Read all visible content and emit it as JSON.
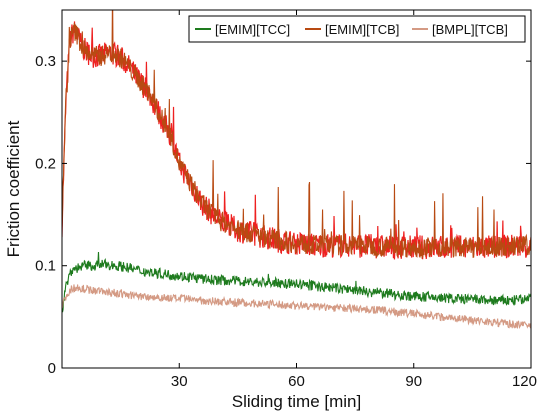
{
  "chart_data": {
    "type": "line",
    "title": "",
    "xlabel": "Sliding time [min]",
    "ylabel": "Friction coefficient",
    "xlim": [
      0,
      120
    ],
    "ylim": [
      0,
      0.35
    ],
    "x_ticks": [
      30,
      60,
      90,
      120
    ],
    "x_tick_labels": [
      "30",
      "60",
      "90",
      "120"
    ],
    "y_ticks": [
      0,
      0.1,
      0.2,
      0.3
    ],
    "y_tick_labels": [
      "0",
      "0.1",
      "0.2",
      "0.3"
    ],
    "grid": false,
    "legend_position": "top-right",
    "x": [
      0,
      1,
      2,
      3,
      4,
      5,
      6,
      8,
      10,
      12,
      14,
      16,
      18,
      20,
      22,
      24,
      26,
      28,
      30,
      33,
      36,
      40,
      45,
      50,
      55,
      60,
      65,
      70,
      75,
      80,
      85,
      90,
      95,
      100,
      105,
      110,
      115,
      120
    ],
    "series": [
      {
        "name": "[EMIM][TCC]",
        "color": "#1e7b1e",
        "values": [
          0.055,
          0.08,
          0.092,
          0.097,
          0.098,
          0.099,
          0.1,
          0.1,
          0.101,
          0.101,
          0.1,
          0.099,
          0.097,
          0.095,
          0.094,
          0.093,
          0.092,
          0.091,
          0.09,
          0.089,
          0.087,
          0.086,
          0.085,
          0.084,
          0.083,
          0.082,
          0.08,
          0.078,
          0.076,
          0.074,
          0.072,
          0.07,
          0.069,
          0.068,
          0.067,
          0.066,
          0.066,
          0.068
        ]
      },
      {
        "name": "[EMIM][TCB]",
        "color": "#b84a12",
        "values": [
          0.14,
          0.26,
          0.32,
          0.33,
          0.325,
          0.315,
          0.31,
          0.305,
          0.305,
          0.308,
          0.306,
          0.3,
          0.29,
          0.28,
          0.27,
          0.255,
          0.24,
          0.225,
          0.2,
          0.18,
          0.16,
          0.145,
          0.135,
          0.13,
          0.125,
          0.122,
          0.12,
          0.12,
          0.12,
          0.119,
          0.118,
          0.118,
          0.118,
          0.118,
          0.118,
          0.118,
          0.119,
          0.12
        ]
      },
      {
        "name": "[BMPL][TCB]",
        "color": "#d49a84",
        "values": [
          0.06,
          0.07,
          0.076,
          0.078,
          0.079,
          0.078,
          0.077,
          0.076,
          0.075,
          0.074,
          0.073,
          0.072,
          0.071,
          0.07,
          0.07,
          0.069,
          0.069,
          0.068,
          0.068,
          0.067,
          0.066,
          0.065,
          0.064,
          0.063,
          0.062,
          0.061,
          0.06,
          0.059,
          0.058,
          0.057,
          0.055,
          0.053,
          0.051,
          0.049,
          0.047,
          0.045,
          0.043,
          0.041
        ]
      }
    ],
    "background_series": {
      "color": "#ee2020",
      "follows_series": "[EMIM][TCB]"
    }
  }
}
